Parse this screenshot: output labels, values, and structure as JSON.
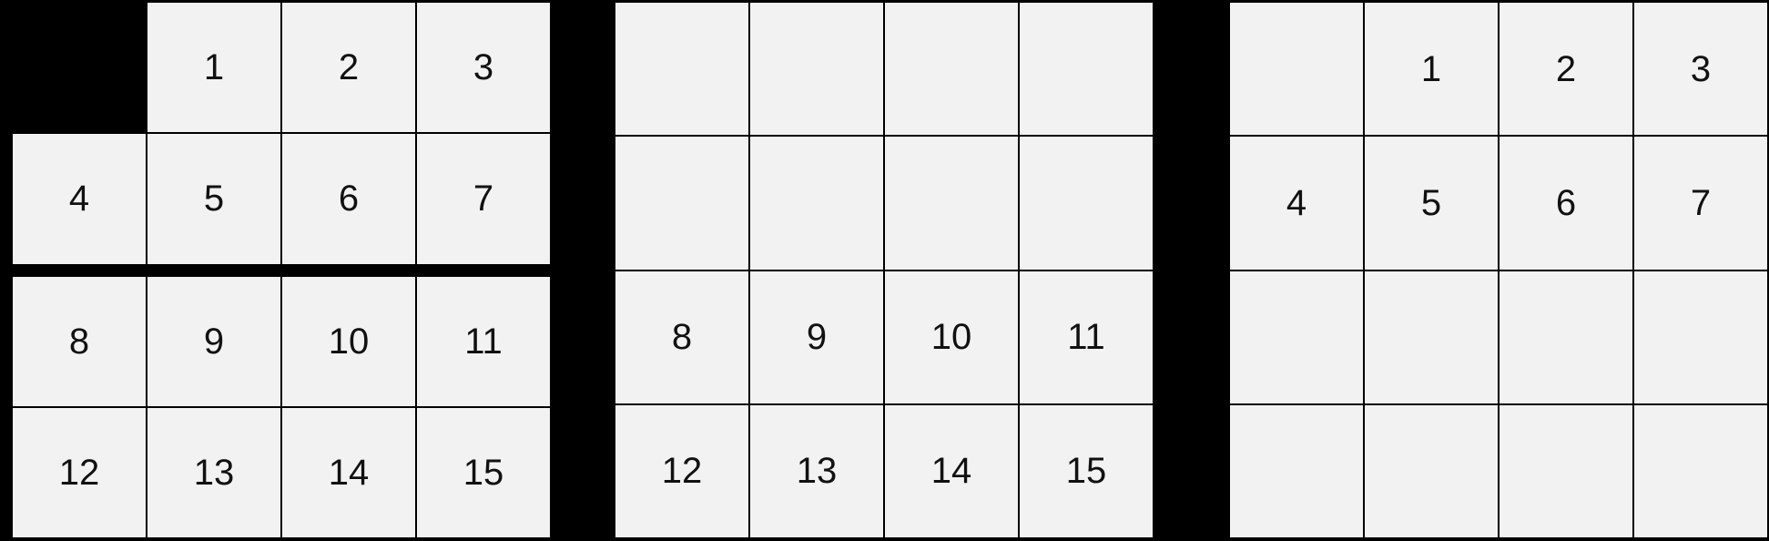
{
  "colors": {
    "background": "#000000",
    "cell_fill": "#f2f2f2",
    "grid_line": "#000000",
    "tile_text": "#111111"
  },
  "grids": [
    {
      "id": "left",
      "split_after_row": 2,
      "rows": [
        [
          null,
          "1",
          "2",
          "3"
        ],
        [
          "4",
          "5",
          "6",
          "7"
        ],
        [
          "8",
          "9",
          "10",
          "11"
        ],
        [
          "12",
          "13",
          "14",
          "15"
        ]
      ]
    },
    {
      "id": "middle",
      "split_after_row": 0,
      "rows": [
        [
          "",
          "",
          "",
          ""
        ],
        [
          "",
          "",
          "",
          ""
        ],
        [
          "8",
          "9",
          "10",
          "11"
        ],
        [
          "12",
          "13",
          "14",
          "15"
        ]
      ]
    },
    {
      "id": "right",
      "split_after_row": 0,
      "rows": [
        [
          "",
          "1",
          "2",
          "3"
        ],
        [
          "4",
          "5",
          "6",
          "7"
        ],
        [
          "",
          "",
          "",
          ""
        ],
        [
          "",
          "",
          "",
          ""
        ]
      ]
    }
  ]
}
